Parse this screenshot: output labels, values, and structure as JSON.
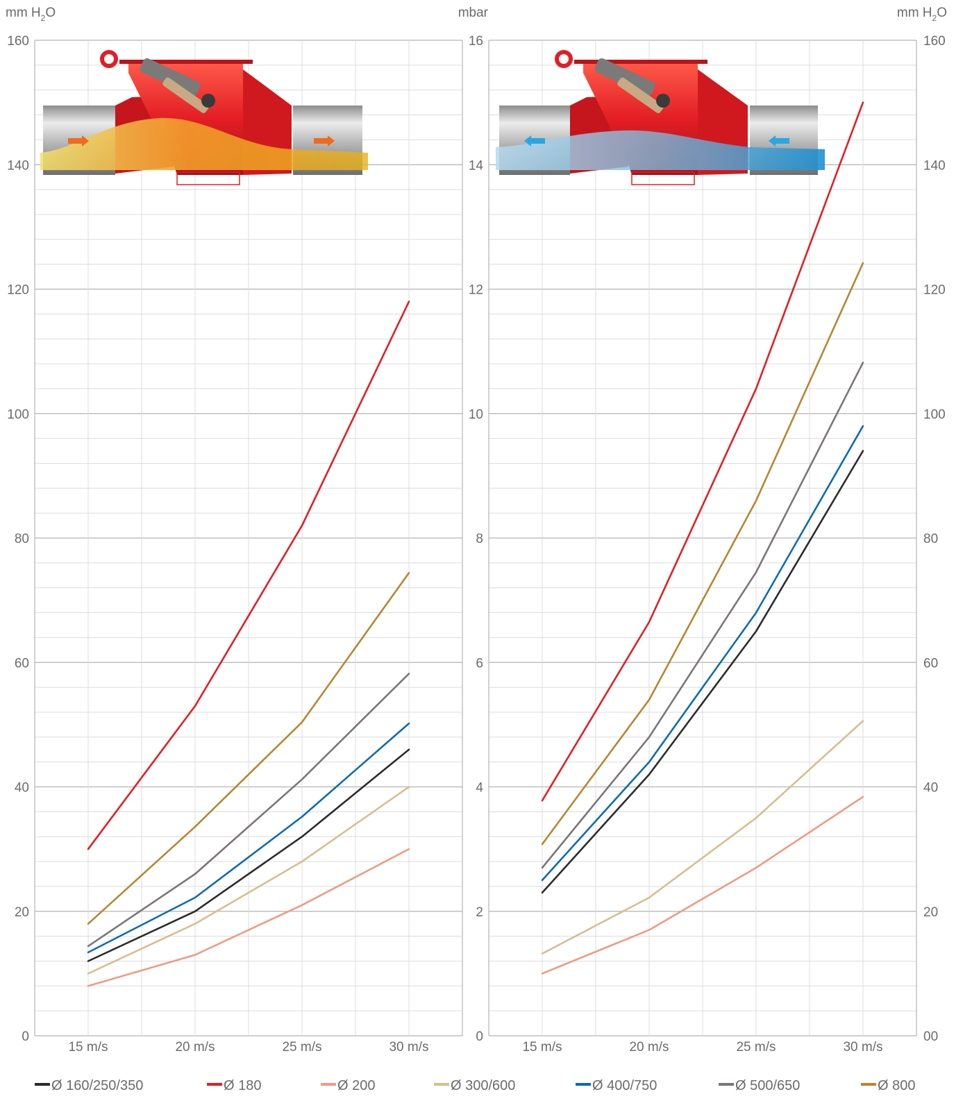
{
  "units": {
    "left": "mm H",
    "left_sub": "2",
    "left_tail": "O",
    "center": "mbar",
    "right": "mm H",
    "right_sub": "2",
    "right_tail": "O"
  },
  "colors": {
    "grid_major": "#b3b3b3",
    "grid_minor": "#dcdcdc",
    "damper_red": "#e31e24",
    "pipe_gray": "#9a9a9a",
    "flow_orange": "#f39c2a",
    "flow_blue": "#4aa8d8"
  },
  "illustrations": {
    "left": {
      "name": "damper-flow-illustration-forward",
      "flow": "left-to-right",
      "flow_color_name": "orange-yellow"
    },
    "right": {
      "name": "damper-flow-illustration-reverse",
      "flow": "right-to-left",
      "flow_color_name": "blue"
    }
  },
  "chart_data": [
    {
      "type": "line",
      "categories": [
        "15 m/s",
        "20 m/s",
        "25 m/s",
        "30 m/s"
      ],
      "y_ticks": [
        "0",
        "20",
        "40",
        "60",
        "80",
        "100",
        "120",
        "140",
        "160"
      ],
      "ylim": [
        0,
        160
      ],
      "grid": true,
      "series": [
        {
          "name": "Ø 160/250/350",
          "color": "#2b2b2b",
          "values": [
            12,
            20,
            32,
            46
          ]
        },
        {
          "name": "Ø 180",
          "color": "#e31e24",
          "values": [
            30,
            53,
            82,
            118
          ]
        },
        {
          "name": "Ø 200",
          "color": "#f19a80",
          "values": [
            8,
            13,
            21,
            30
          ]
        },
        {
          "name": "Ø 300/600",
          "color": "#d9bd8e",
          "values": [
            10,
            18,
            28,
            40
          ]
        },
        {
          "name": "Ø 400/750",
          "color": "#0c6cb0",
          "values": [
            13.4,
            22.2,
            35.2,
            50.2
          ]
        },
        {
          "name": "Ø 500/650",
          "color": "#7b7579",
          "values": [
            14.4,
            26,
            41.2,
            58.2
          ]
        },
        {
          "name": "Ø 800",
          "color": "#b8862f",
          "values": [
            18,
            33.6,
            50.4,
            74.4
          ]
        }
      ]
    },
    {
      "type": "line",
      "categories": [
        "15 m/s",
        "20 m/s",
        "25 m/s",
        "30 m/s"
      ],
      "y_ticks": [
        "0",
        "2",
        "4",
        "6",
        "8",
        "10",
        "12",
        "14",
        "16"
      ],
      "y2_ticks": [
        "00",
        "20",
        "40",
        "60",
        "80",
        "100",
        "120",
        "140",
        "160"
      ],
      "ylim": [
        0,
        16
      ],
      "grid": true,
      "series": [
        {
          "name": "Ø 160/250/350",
          "color": "#2b2b2b",
          "values": [
            2.3,
            4.2,
            6.5,
            9.4
          ]
        },
        {
          "name": "Ø 180",
          "color": "#e31e24",
          "values": [
            3.78,
            6.65,
            10.4,
            15
          ]
        },
        {
          "name": "Ø 200",
          "color": "#f19a80",
          "values": [
            1,
            1.7,
            2.7,
            3.84
          ]
        },
        {
          "name": "Ø 300/600",
          "color": "#d9bd8e",
          "values": [
            1.32,
            2.22,
            3.5,
            5.06
          ]
        },
        {
          "name": "Ø 400/750",
          "color": "#0c6cb0",
          "values": [
            2.5,
            4.4,
            6.8,
            9.8
          ]
        },
        {
          "name": "Ø 500/650",
          "color": "#7b7579",
          "values": [
            2.7,
            4.8,
            7.45,
            10.82
          ]
        },
        {
          "name": "Ø 800",
          "color": "#b8862f",
          "values": [
            3.08,
            5.4,
            8.6,
            12.42
          ]
        }
      ]
    }
  ],
  "legend": [
    {
      "label": "Ø 160/250/350",
      "color": "#2b2b2b"
    },
    {
      "label": "Ø 180",
      "color": "#e31e24"
    },
    {
      "label": "Ø 200",
      "color": "#f19a80"
    },
    {
      "label": "Ø 300/600",
      "color": "#d9bd8e"
    },
    {
      "label": "Ø 400/750",
      "color": "#0c6cb0"
    },
    {
      "label": "Ø 500/650",
      "color": "#7b7579"
    },
    {
      "label": "Ø 800",
      "color": "#b8862f"
    }
  ]
}
